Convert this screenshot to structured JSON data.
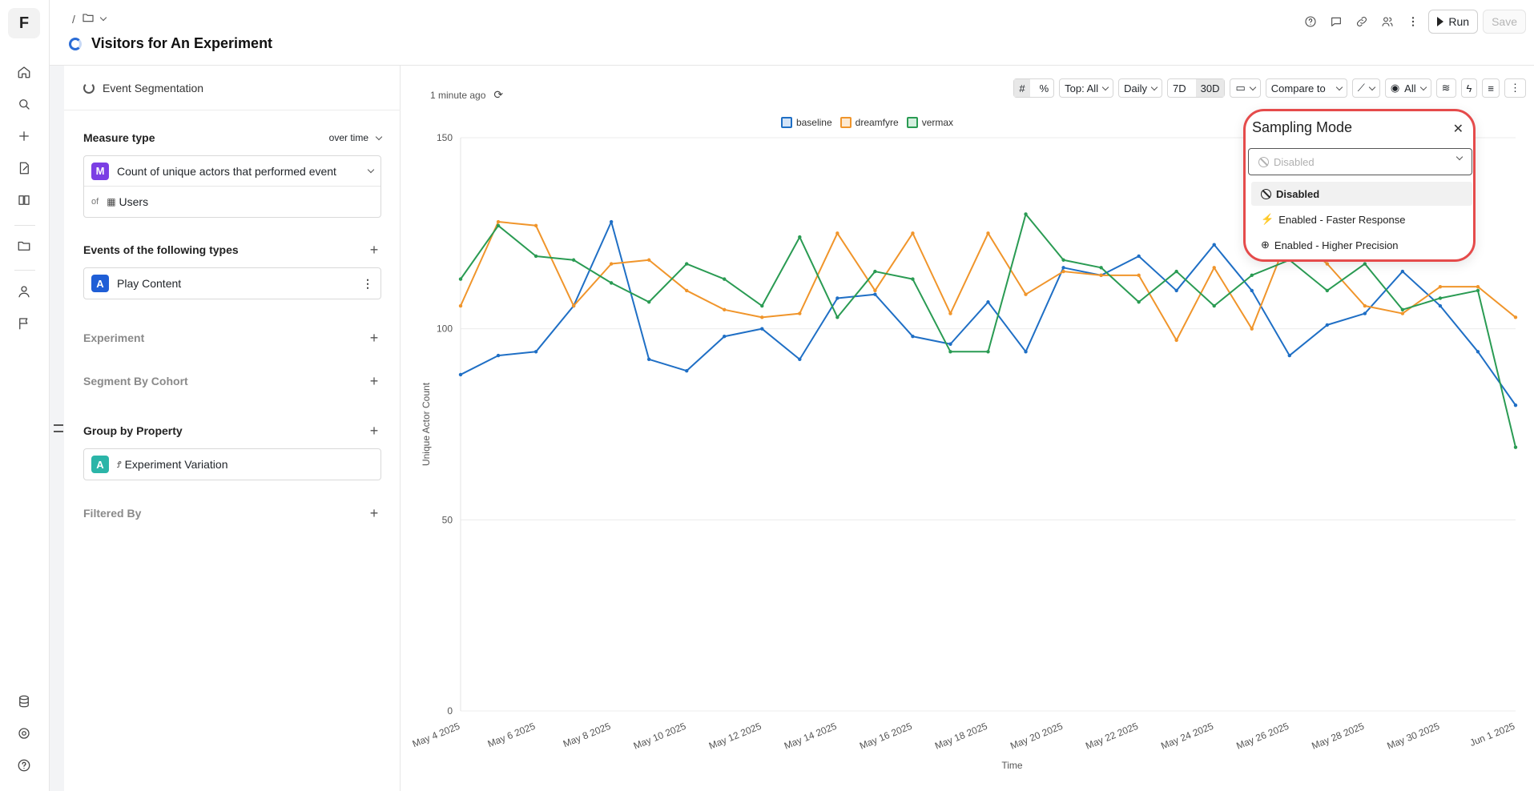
{
  "app": {
    "logo": "F"
  },
  "rail": {
    "icons": [
      "home-icon",
      "search-icon",
      "plus-icon",
      "edit-report-icon",
      "book-icon",
      "folder-icon",
      "user-icon",
      "flag-icon",
      "database-icon",
      "gear-icon",
      "help-icon"
    ]
  },
  "header": {
    "breadcrumb_sep": "/",
    "title": "Visitors for An Experiment",
    "run_label": "Run",
    "save_label": "Save"
  },
  "panel": {
    "subtitle": "Event Segmentation",
    "measure_type_label": "Measure type",
    "measure_type_value": "over time",
    "measure_badge": "M",
    "measure_text": "Count of unique actors that performed event",
    "of_label": "of",
    "users_label": "Users",
    "events_label": "Events of the following types",
    "event_badge": "A",
    "event_name": "Play Content",
    "experiment_label": "Experiment",
    "segment_label": "Segment By Cohort",
    "group_label": "Group by Property",
    "group_badge": "A",
    "group_value": "Experiment Variation",
    "filtered_label": "Filtered By"
  },
  "toolbar": {
    "updated": "1 minute ago",
    "top": "Top: All",
    "interval": "Daily",
    "range_7d": "7D",
    "range_30d": "30D",
    "compare": "Compare to",
    "view_all": "All"
  },
  "popup": {
    "title": "Sampling Mode",
    "placeholder": "Disabled",
    "options": [
      "Disabled",
      "Enabled - Faster Response",
      "Enabled - Higher Precision"
    ]
  },
  "colors": {
    "baseline": "#1f6fc5",
    "dreamfyre": "#f0952b",
    "vermax": "#2a9b53",
    "accent_popup": "#e54b4b"
  },
  "chart_data": {
    "type": "line",
    "ylabel": "Unique Actor Count",
    "xlabel": "Time",
    "ylim": [
      0,
      150
    ],
    "yticks": [
      0,
      50,
      100,
      150
    ],
    "xticks": [
      "May 4 2025",
      "May 6 2025",
      "May 8 2025",
      "May 10 2025",
      "May 12 2025",
      "May 14 2025",
      "May 16 2025",
      "May 18 2025",
      "May 20 2025",
      "May 22 2025",
      "May 24 2025",
      "May 26 2025",
      "May 28 2025",
      "May 30 2025",
      "Jun 1 2025"
    ],
    "x": [
      "May 4",
      "May 5",
      "May 6",
      "May 7",
      "May 8",
      "May 9",
      "May 10",
      "May 11",
      "May 12",
      "May 13",
      "May 14",
      "May 15",
      "May 16",
      "May 17",
      "May 18",
      "May 19",
      "May 20",
      "May 21",
      "May 22",
      "May 23",
      "May 24",
      "May 25",
      "May 26",
      "May 27",
      "May 28",
      "May 29",
      "May 30",
      "May 31",
      "Jun 1"
    ],
    "series": [
      {
        "name": "baseline",
        "values": [
          88,
          93,
          94,
          106,
          128,
          92,
          89,
          98,
          100,
          92,
          108,
          109,
          98,
          96,
          107,
          94,
          116,
          114,
          119,
          110,
          122,
          110,
          93,
          101,
          104,
          115,
          106,
          94,
          80
        ]
      },
      {
        "name": "dreamfyre",
        "values": [
          106,
          128,
          127,
          106,
          117,
          118,
          110,
          105,
          103,
          104,
          125,
          110,
          125,
          104,
          125,
          109,
          115,
          114,
          114,
          97,
          116,
          100,
          125,
          117,
          106,
          104,
          111,
          111,
          103
        ]
      },
      {
        "name": "vermax",
        "values": [
          113,
          127,
          119,
          118,
          112,
          107,
          117,
          113,
          106,
          124,
          103,
          115,
          113,
          94,
          94,
          130,
          118,
          116,
          107,
          115,
          106,
          114,
          118,
          110,
          117,
          105,
          108,
          110,
          69
        ]
      }
    ]
  }
}
